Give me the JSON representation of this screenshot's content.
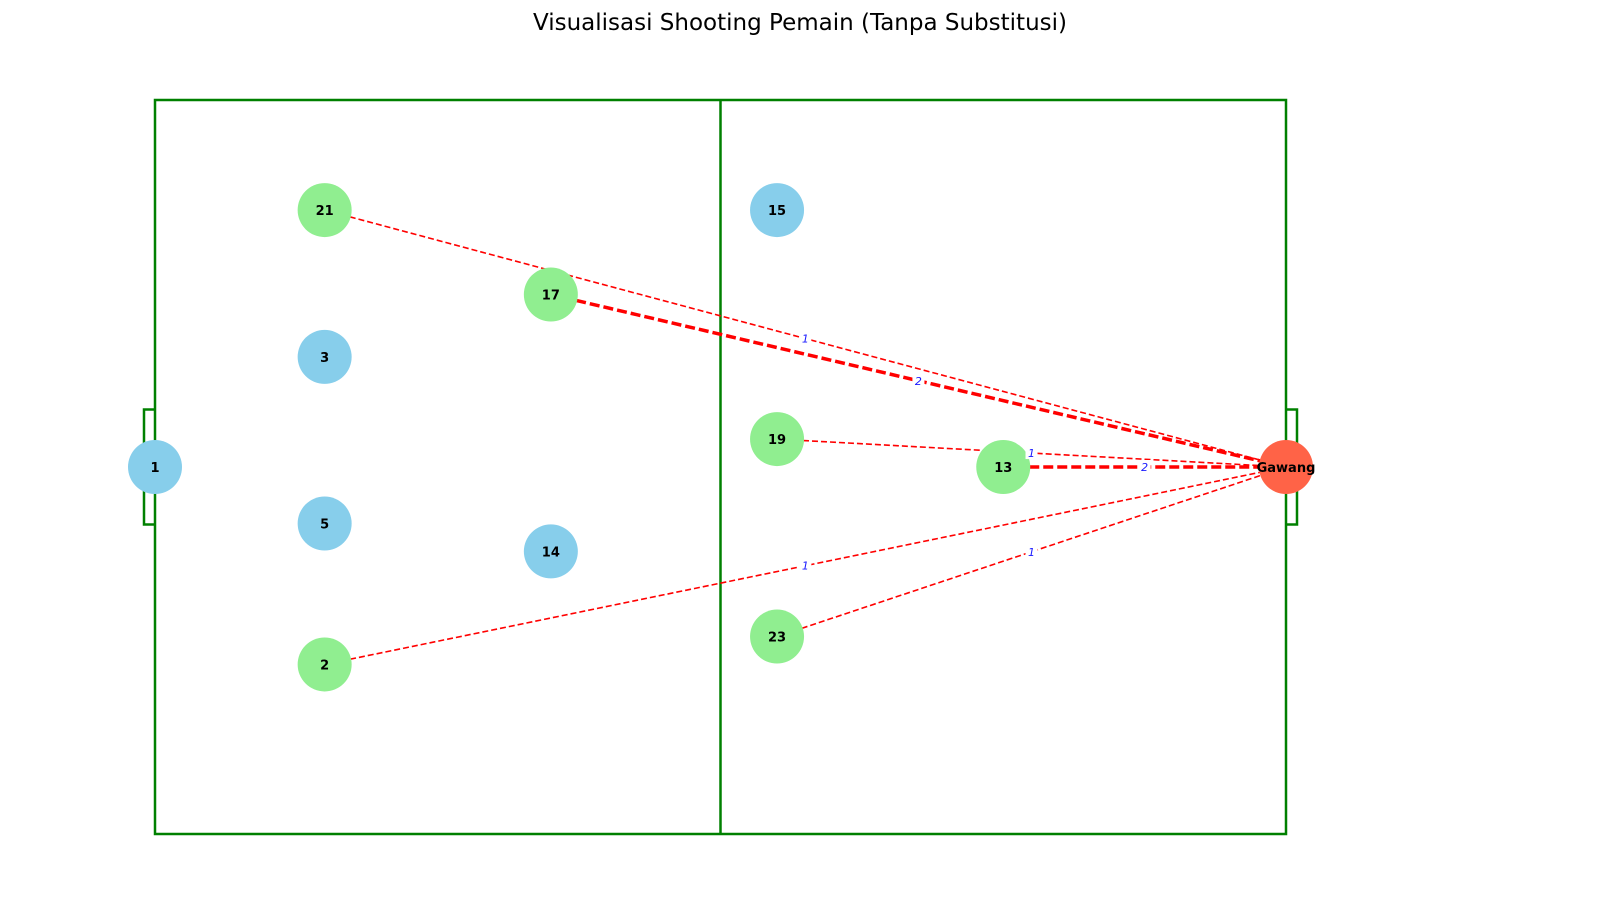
{
  "title": "Visualisasi Shooting Pemain (Tanpa Substitusi)",
  "colors": {
    "pitch_line": "#008000",
    "player_no_shot": "#87CEEB",
    "player_shot": "#90EE90",
    "goal_node": "#FF6347",
    "shot_line": "#FF0000",
    "edge_label": "#1a1aff"
  },
  "goal": {
    "label": "Gawang",
    "x": 100,
    "y": 50
  },
  "players": [
    {
      "number": "1",
      "x": 0,
      "y": 50,
      "shot": false
    },
    {
      "number": "3",
      "x": 15,
      "y": 65,
      "shot": false
    },
    {
      "number": "5",
      "x": 15,
      "y": 42.3,
      "shot": false
    },
    {
      "number": "14",
      "x": 35,
      "y": 38.5,
      "shot": false
    },
    {
      "number": "15",
      "x": 55,
      "y": 85,
      "shot": false
    },
    {
      "number": "21",
      "x": 15,
      "y": 85,
      "shot": true
    },
    {
      "number": "17",
      "x": 35,
      "y": 73.5,
      "shot": true
    },
    {
      "number": "19",
      "x": 55,
      "y": 53.8,
      "shot": true
    },
    {
      "number": "13",
      "x": 75,
      "y": 50,
      "shot": true
    },
    {
      "number": "2",
      "x": 15,
      "y": 23.1,
      "shot": true
    },
    {
      "number": "23",
      "x": 55,
      "y": 26.9,
      "shot": true
    }
  ],
  "shots": [
    {
      "from": "21",
      "count": "1"
    },
    {
      "from": "17",
      "count": "2"
    },
    {
      "from": "19",
      "count": "1"
    },
    {
      "from": "13",
      "count": "2"
    },
    {
      "from": "2",
      "count": "1"
    },
    {
      "from": "23",
      "count": "1"
    }
  ]
}
